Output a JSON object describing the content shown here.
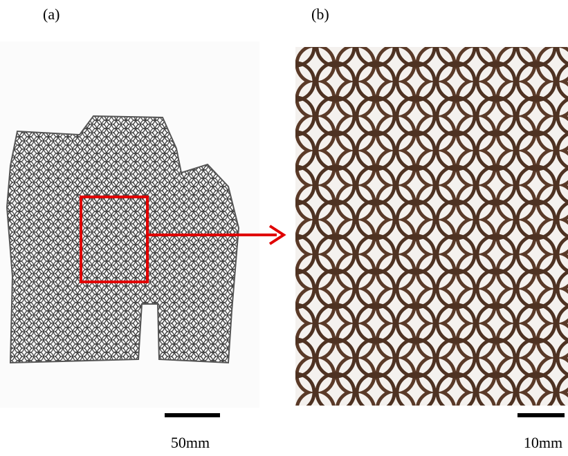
{
  "panels": [
    {
      "label": "(a)",
      "scale_bar": "50mm"
    },
    {
      "label": "(b)",
      "scale_bar": "10mm"
    }
  ]
}
